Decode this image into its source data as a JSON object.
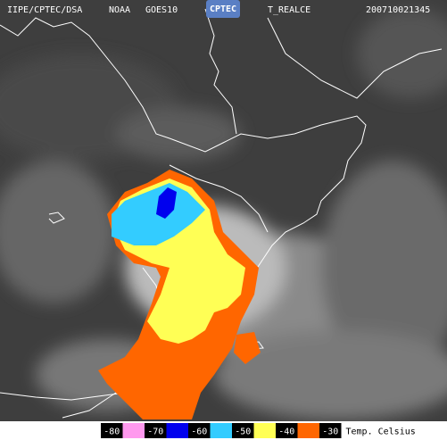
{
  "header": {
    "source": "IIPE/CPTEC/DSA",
    "agency": "NOAA",
    "satellite": "GOES10",
    "logo": "CPTEC",
    "product": "T_REALCE",
    "timestamp": "200710021345"
  },
  "legend": {
    "title": "Temp. Celsius",
    "items": [
      {
        "label": "-80",
        "color": "#ff99ee"
      },
      {
        "label": "-70",
        "color": "#0000ee"
      },
      {
        "label": "-60",
        "color": "#33ccff"
      },
      {
        "label": "-50",
        "color": "#ffff55"
      },
      {
        "label": "-40",
        "color": "#ff6600"
      },
      {
        "label": "-30",
        "color": "#ffffff"
      }
    ]
  }
}
